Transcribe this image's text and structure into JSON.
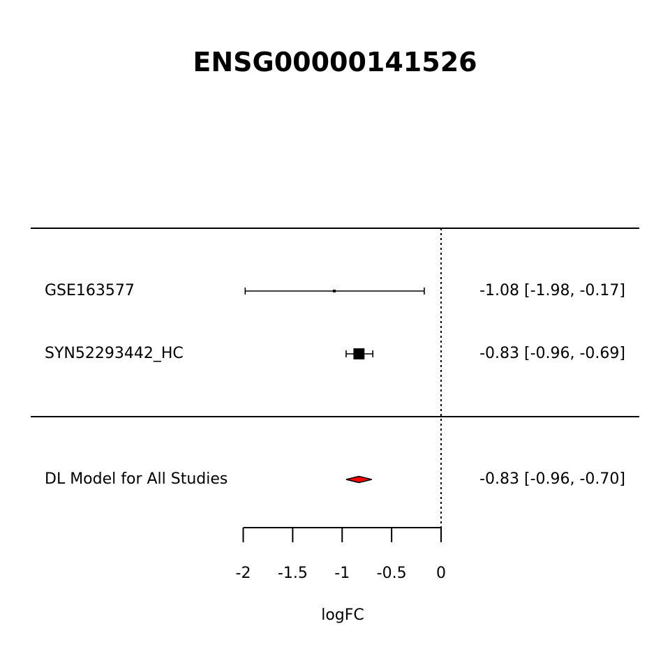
{
  "chart_data": {
    "type": "forest",
    "title": "ENSG00000141526",
    "xlabel": "logFC",
    "xlim": [
      -2,
      0
    ],
    "xticks": [
      -2,
      -1.5,
      -1,
      -0.5,
      0
    ],
    "tick_labels": [
      "-2",
      "-1.5",
      "-1",
      "-0.5",
      "0"
    ],
    "reference_line": 0,
    "studies": [
      {
        "label": "GSE163577",
        "estimate": -1.08,
        "ci_lower": -1.98,
        "ci_upper": -0.17,
        "weight": 0.02,
        "text": "-1.08 [-1.98, -0.17]"
      },
      {
        "label": "SYN52293442_HC",
        "estimate": -0.83,
        "ci_lower": -0.96,
        "ci_upper": -0.69,
        "weight": 0.98,
        "text": "-0.83 [-0.96, -0.69]"
      }
    ],
    "summary": {
      "label": "DL Model for All Studies",
      "estimate": -0.83,
      "ci_lower": -0.96,
      "ci_upper": -0.7,
      "text": "-0.83 [-0.96, -0.70]",
      "fill": "#ff0000"
    }
  }
}
